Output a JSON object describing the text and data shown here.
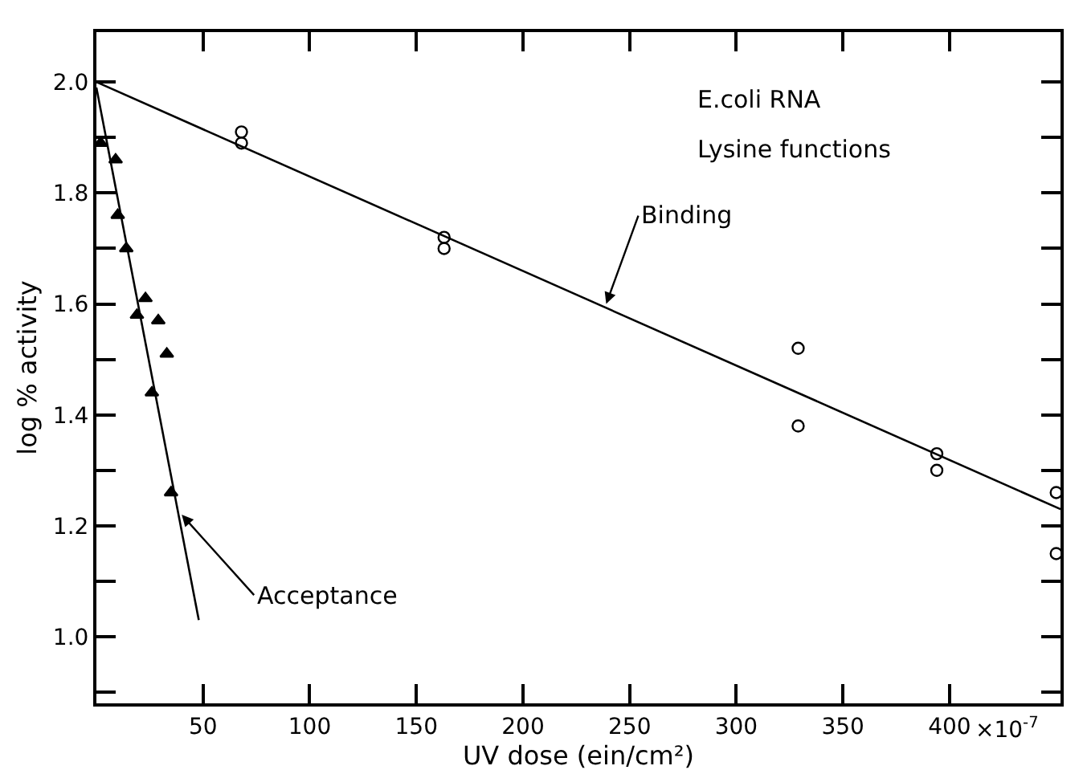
{
  "chart_data": {
    "type": "scatter",
    "title": "E.coli RNA",
    "subtitle": "Lysine functions",
    "xlabel": "UV dose (ein/cm²)",
    "ylabel": "log % activity",
    "xlim": [
      0,
      452
    ],
    "ylim": [
      0.88,
      2.09
    ],
    "xticks": [
      50,
      100,
      150,
      200,
      250,
      300,
      350,
      400
    ],
    "yticks": [
      {
        "value": 0.9,
        "label": null
      },
      {
        "value": 1.0,
        "label": "1.0"
      },
      {
        "value": 1.1,
        "label": null
      },
      1.2,
      {
        "value": 1.3,
        "label": null
      },
      1.4,
      {
        "value": 1.5,
        "label": null
      },
      1.6,
      {
        "value": 1.7,
        "label": null
      },
      1.8,
      {
        "value": 1.9,
        "label": null
      },
      {
        "value": 2.0,
        "label": "2.0"
      }
    ],
    "grid": false,
    "series": [
      {
        "marker": "circle",
        "color": "#000000",
        "x": [
          68,
          68,
          163,
          163,
          329,
          329,
          394,
          394,
          450,
          450
        ],
        "values": [
          1.91,
          1.89,
          1.72,
          1.7,
          1.52,
          1.38,
          1.33,
          1.3,
          1.26,
          1.15
        ]
      },
      {
        "type": "line",
        "marker": "none",
        "color": "#000000",
        "x": [
          0,
          452
        ],
        "values": [
          2.0,
          1.23
        ]
      },
      {
        "marker": "triangle",
        "color": "#000000",
        "x": [
          2,
          9,
          10,
          14,
          23,
          19,
          29,
          33,
          26,
          35
        ],
        "values": [
          1.89,
          1.86,
          1.76,
          1.7,
          1.61,
          1.58,
          1.57,
          1.51,
          1.44,
          1.26
        ]
      },
      {
        "type": "line",
        "marker": "none",
        "color": "#000000",
        "x": [
          0,
          48
        ],
        "values": [
          1.99,
          1.03
        ]
      }
    ],
    "annotations": [
      "×10$^{-7}$",
      {
        "text": "Binding",
        "x": 239,
        "y": 1.6
      },
      {
        "text": "Acceptance",
        "x": 40,
        "y": 1.22
      }
    ]
  }
}
